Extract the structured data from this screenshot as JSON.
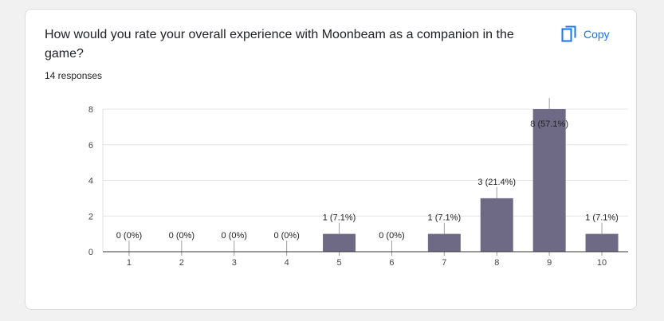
{
  "card": {
    "question": "How would you rate your overall experience with Moonbeam as a companion in the game?",
    "responses": "14 responses",
    "copy_label": "Copy",
    "copy_icon": "copy-icon",
    "accent_color": "#1a73e8"
  },
  "chart_data": {
    "type": "bar",
    "categories": [
      "1",
      "2",
      "3",
      "4",
      "5",
      "6",
      "7",
      "8",
      "9",
      "10"
    ],
    "values": [
      0,
      0,
      0,
      0,
      1,
      0,
      1,
      3,
      8,
      1
    ],
    "data_labels": [
      "0 (0%)",
      "0 (0%)",
      "0 (0%)",
      "0 (0%)",
      "1 (7.1%)",
      "0 (0%)",
      "1 (7.1%)",
      "3 (21.4%)",
      "8 (57.1%)",
      "1 (7.1%)"
    ],
    "y_ticks": [
      0,
      2,
      4,
      6,
      8
    ],
    "ylim": [
      0,
      8
    ],
    "grid": true,
    "bar_color": "#6e6985"
  }
}
